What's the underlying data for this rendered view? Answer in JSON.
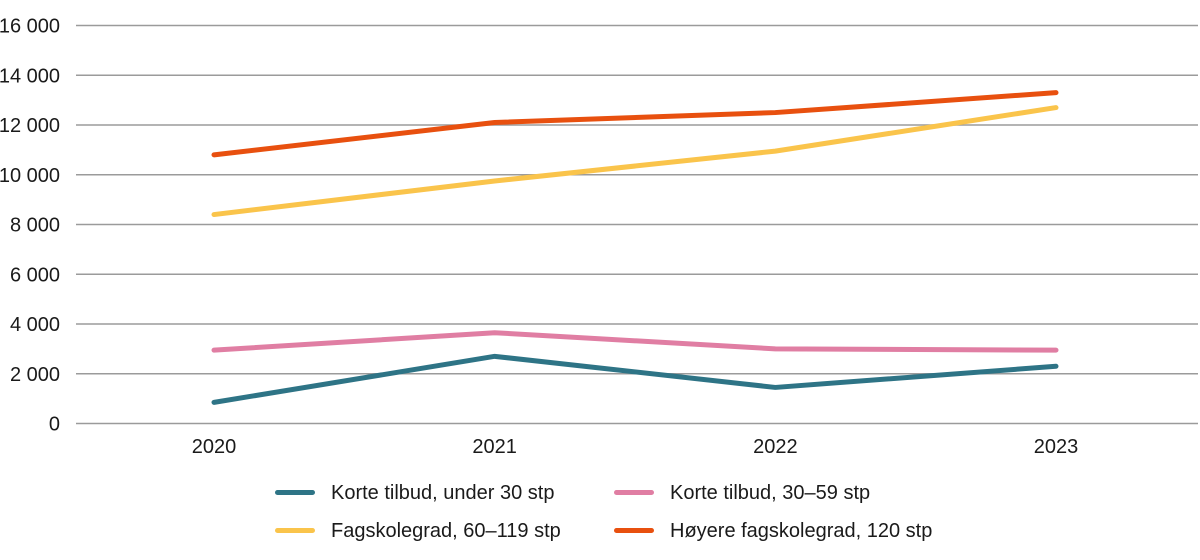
{
  "chart_data": {
    "type": "line",
    "title": "",
    "xlabel": "",
    "ylabel": "",
    "categories": [
      "2020",
      "2021",
      "2022",
      "2023"
    ],
    "series": [
      {
        "name": "Korte tilbud, under 30 stp",
        "color": "#2E7486",
        "values": [
          850,
          2700,
          1450,
          2300
        ]
      },
      {
        "name": "Korte tilbud, 30–59 stp",
        "color": "#E07EA3",
        "values": [
          2950,
          3650,
          3000,
          2950
        ]
      },
      {
        "name": "Fagskolegrad, 60–119 stp",
        "color": "#FAC44B",
        "values": [
          8400,
          9750,
          10950,
          12700
        ]
      },
      {
        "name": "Høyere fagskolegrad, 120 stp",
        "color": "#E8500F",
        "values": [
          10800,
          12100,
          12500,
          13300
        ]
      }
    ],
    "ylim": [
      0,
      16000
    ],
    "ytick_step": 2000,
    "ytick_labels": [
      "0",
      "2 000",
      "4 000",
      "6 000",
      "8 000",
      "10 000",
      "12 000",
      "14 000",
      "16 000"
    ],
    "grid": true,
    "legend_position": "bottom",
    "legend_columns": 2
  },
  "colors": {
    "background": "#FFFFFF",
    "gridline": "#9B9B9B",
    "text": "#1A1A1A"
  }
}
